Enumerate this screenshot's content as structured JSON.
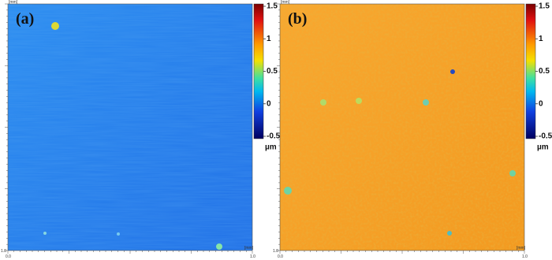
{
  "panels": [
    {
      "label": "(a)",
      "axis_unit_x": "[mm]",
      "axis_unit_y": "[mm]",
      "x_start": "0.0",
      "x_end": "1.0",
      "y_end": "1.0",
      "colorbar": {
        "ticks": [
          1.5,
          1,
          0.5,
          0,
          -0.5
        ],
        "unit": "µm"
      }
    },
    {
      "label": "(b)",
      "axis_unit_x": "[mm]",
      "axis_unit_y": "[mm]",
      "x_start": "0.0",
      "x_end": "1.0",
      "y_end": "1.0",
      "colorbar": {
        "ticks": [
          1.5,
          1,
          0.5,
          0,
          -0.5
        ],
        "unit": "µm"
      }
    }
  ]
}
